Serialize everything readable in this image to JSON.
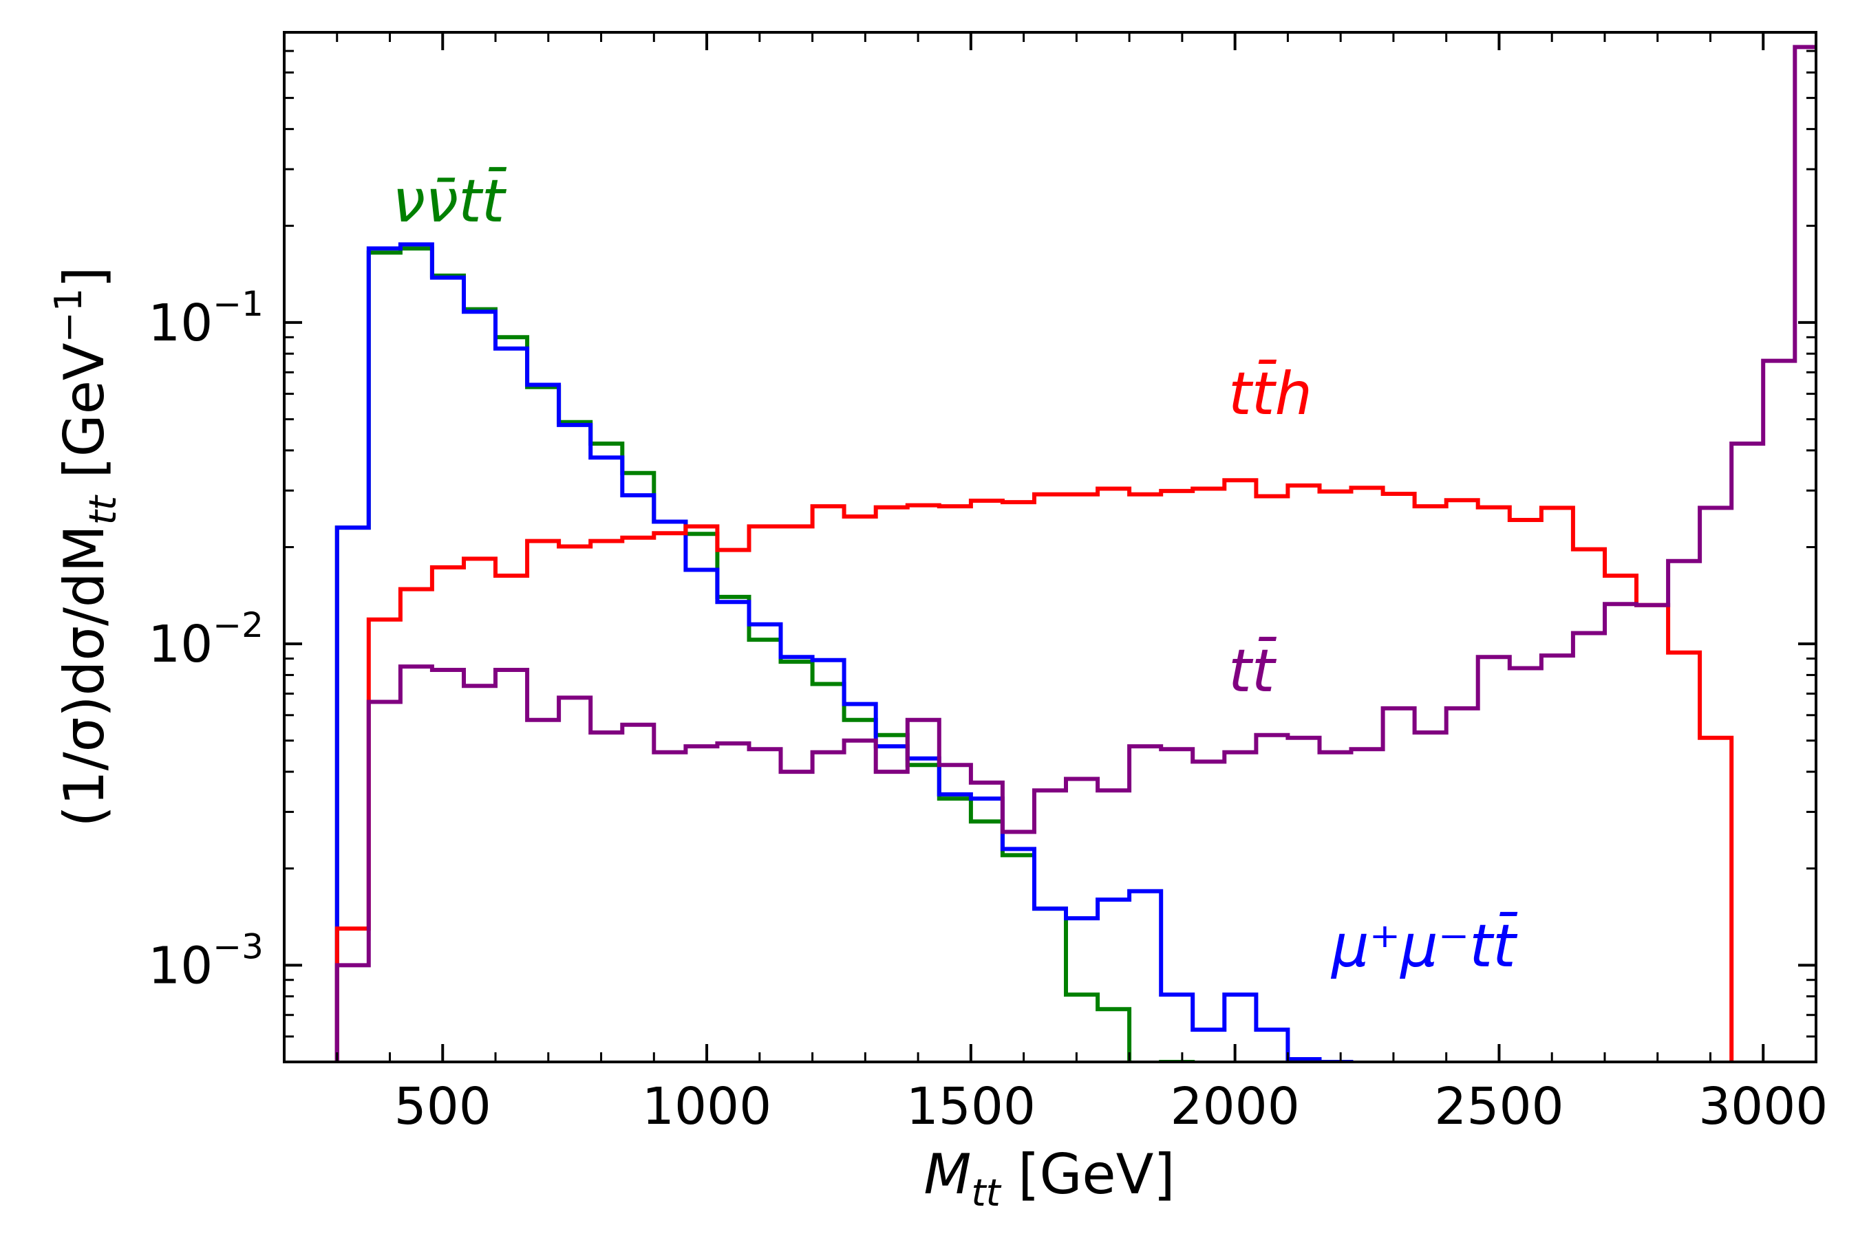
{
  "chart_data": {
    "type": "histogram-step",
    "xlabel_main": "M",
    "xlabel_sub": "tt",
    "xlabel_unit": " [GeV]",
    "ylabel_prefix": "(1/σ)dσ/dM",
    "ylabel_sub": "tt",
    "ylabel_unit": " [GeV",
    "ylabel_unit_exp": "−1",
    "ylabel_unit_close": "]",
    "yscale": "log",
    "xlim": [
      200,
      3100
    ],
    "ylim": [
      0.0005,
      0.8
    ],
    "x_ticks": [
      {
        "value": 500,
        "label": "500"
      },
      {
        "value": 1000,
        "label": "1000"
      },
      {
        "value": 1500,
        "label": "1500"
      },
      {
        "value": 2000,
        "label": "2000"
      },
      {
        "value": 2500,
        "label": "2500"
      },
      {
        "value": 3000,
        "label": "3000"
      }
    ],
    "y_ticks": [
      {
        "value": 0.1,
        "base": "10",
        "exp": "−1"
      },
      {
        "value": 0.01,
        "base": "10",
        "exp": "−2"
      },
      {
        "value": 0.001,
        "base": "10",
        "exp": "−3"
      }
    ],
    "bin_start": 300,
    "bin_width": 60,
    "series": [
      {
        "name": "νν̄tt̄",
        "color": "#008000",
        "values": [
          0.023,
          0.165,
          0.17,
          0.14,
          0.11,
          0.09,
          0.063,
          0.049,
          0.042,
          0.034,
          0.024,
          0.022,
          0.014,
          0.0103,
          0.0088,
          0.0075,
          0.0058,
          0.0052,
          0.0042,
          0.0033,
          0.0028,
          0.0022,
          0.0015,
          0.00081,
          0.00073,
          0.0004,
          0.0005
        ]
      },
      {
        "name": "μ⁺μ⁻tt̄",
        "color": "#0000ff",
        "values": [
          0.023,
          0.17,
          0.175,
          0.138,
          0.108,
          0.083,
          0.064,
          0.048,
          0.038,
          0.029,
          0.024,
          0.017,
          0.0135,
          0.0115,
          0.0091,
          0.0089,
          0.0065,
          0.0048,
          0.0044,
          0.0034,
          0.0033,
          0.0023,
          0.0015,
          0.0014,
          0.0016,
          0.0017,
          0.00081,
          0.00063,
          0.00081,
          0.00063,
          0.00051,
          0.0005
        ]
      },
      {
        "name": "tt̄h",
        "color": "#ff0000",
        "values": [
          0.0013,
          0.0119,
          0.0148,
          0.0173,
          0.0184,
          0.0163,
          0.0209,
          0.0201,
          0.0209,
          0.0214,
          0.0221,
          0.0232,
          0.0196,
          0.0232,
          0.0232,
          0.0268,
          0.0249,
          0.0266,
          0.027,
          0.0268,
          0.0279,
          0.0276,
          0.0292,
          0.0292,
          0.0304,
          0.0292,
          0.0299,
          0.0304,
          0.0323,
          0.0288,
          0.0311,
          0.0298,
          0.0306,
          0.0293,
          0.0268,
          0.028,
          0.0266,
          0.0243,
          0.0265,
          0.0197,
          0.0163,
          0.0132,
          0.0094,
          0.0051,
          0.0004
        ]
      },
      {
        "name": "tt̄",
        "color": "#800080",
        "values": [
          0.001,
          0.0066,
          0.0085,
          0.0083,
          0.0074,
          0.0083,
          0.0058,
          0.0068,
          0.0053,
          0.0056,
          0.0046,
          0.0048,
          0.0049,
          0.0047,
          0.004,
          0.0046,
          0.005,
          0.004,
          0.0058,
          0.0042,
          0.0037,
          0.0026,
          0.0035,
          0.0038,
          0.0035,
          0.0048,
          0.0047,
          0.0043,
          0.0046,
          0.0052,
          0.0051,
          0.0046,
          0.0047,
          0.0063,
          0.0053,
          0.0063,
          0.0091,
          0.0084,
          0.0092,
          0.0108,
          0.0133,
          0.0132,
          0.0181,
          0.0265,
          0.042,
          0.076,
          0.72
        ]
      }
    ],
    "annotations": [
      {
        "id": "nunu",
        "color": "#008000"
      },
      {
        "id": "tth",
        "color": "#ff0000"
      },
      {
        "id": "tt",
        "color": "#800080"
      },
      {
        "id": "mumu",
        "color": "#0000ff"
      }
    ]
  }
}
